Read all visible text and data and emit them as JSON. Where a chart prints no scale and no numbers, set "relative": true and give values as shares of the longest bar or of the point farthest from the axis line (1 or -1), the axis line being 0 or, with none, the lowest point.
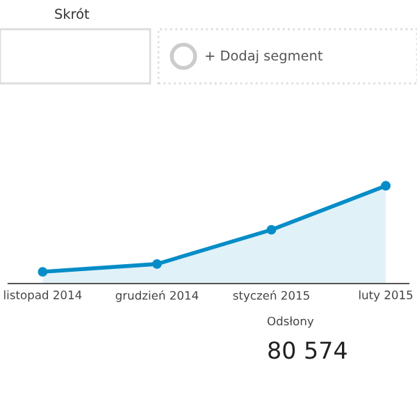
{
  "chart_data": {
    "type": "area",
    "relative": true,
    "categories": [
      "listopad 2014",
      "grudzień 2014",
      "styczeń 2015",
      "luty 2015"
    ],
    "series": [
      {
        "color": "#058dc7",
        "values": [
          0.12,
          0.2,
          0.55,
          1
        ]
      }
    ],
    "marker": "circle",
    "line_style": "solid",
    "legend": false,
    "grid": false,
    "annotations": [
      "Skrót",
      "+ Dodaj segment",
      "Odsłony",
      "80 574"
    ]
  }
}
